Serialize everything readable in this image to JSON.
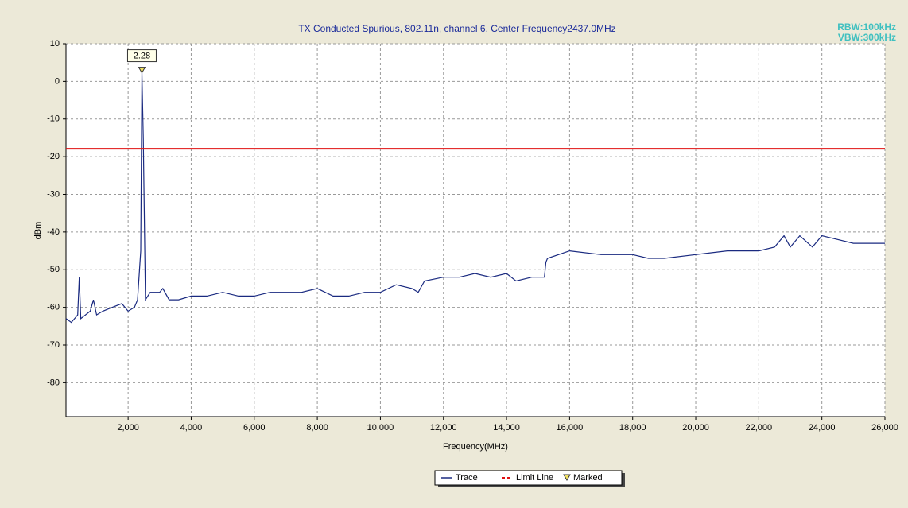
{
  "chart_data": {
    "type": "line",
    "title": "TX Conducted Spurious, 802.11n, channel 6, Center Frequency2437.0MHz",
    "annotations": [
      "RBW:100kHz",
      "VBW:300kHz"
    ],
    "x_label": "Frequency(MHz)",
    "y_label": "dBm",
    "xlim": [
      30,
      26000
    ],
    "ylim": [
      -89,
      10
    ],
    "xticks": [
      {
        "value": 2000,
        "label": "2,000"
      },
      {
        "value": 4000,
        "label": "4,000"
      },
      {
        "value": 6000,
        "label": "6,000"
      },
      {
        "value": 8000,
        "label": "8,000"
      },
      {
        "value": 10000,
        "label": "10,000"
      },
      {
        "value": 12000,
        "label": "12,000"
      },
      {
        "value": 14000,
        "label": "14,000"
      },
      {
        "value": 16000,
        "label": "16,000"
      },
      {
        "value": 18000,
        "label": "18,000"
      },
      {
        "value": 20000,
        "label": "20,000"
      },
      {
        "value": 22000,
        "label": "22,000"
      },
      {
        "value": 24000,
        "label": "24,000"
      },
      {
        "value": 26000,
        "label": "26,000"
      }
    ],
    "yticks": [
      10,
      0,
      -10,
      -20,
      -30,
      -40,
      -50,
      -60,
      -70,
      -80
    ],
    "grid": true,
    "legend": "bottom",
    "series": [
      {
        "name": "Trace",
        "color": "#1a2a80",
        "x": [
          30,
          200,
          400,
          450,
          500,
          800,
          900,
          1000,
          1200,
          1500,
          1800,
          2000,
          2200,
          2300,
          2400,
          2437,
          2480,
          2550,
          2700,
          3000,
          3100,
          3300,
          3600,
          4000,
          4500,
          5000,
          5500,
          6000,
          6500,
          7000,
          7500,
          8000,
          8500,
          9000,
          9500,
          10000,
          10500,
          11000,
          11200,
          11400,
          12000,
          12500,
          13000,
          13500,
          14000,
          14300,
          14800,
          15200,
          15250,
          15300,
          16000,
          17000,
          17500,
          18000,
          18500,
          19000,
          20000,
          21000,
          22000,
          22500,
          22800,
          23000,
          23300,
          23700,
          24000,
          24500,
          25000,
          26000
        ],
        "values": [
          -63,
          -64,
          -62,
          -52,
          -63,
          -61,
          -58,
          -62,
          -61,
          -60,
          -59,
          -61,
          -60,
          -58,
          -45,
          2.28,
          -15,
          -58,
          -56,
          -56,
          -55,
          -58,
          -58,
          -57,
          -57,
          -56,
          -57,
          -57,
          -56,
          -56,
          -56,
          -55,
          -57,
          -57,
          -56,
          -56,
          -54,
          -55,
          -56,
          -53,
          -52,
          -52,
          -51,
          -52,
          -51,
          -53,
          -52,
          -52,
          -48,
          -47,
          -45,
          -46,
          -46,
          -46,
          -47,
          -47,
          -46,
          -45,
          -45,
          -44,
          -41,
          -44,
          -41,
          -44,
          -41,
          -42,
          -43,
          -43
        ]
      },
      {
        "name": "Limit Line",
        "color": "#e01010",
        "values": [
          -17.9
        ]
      },
      {
        "name": "Marked",
        "color": "#f0e060",
        "x": [
          2437
        ],
        "values": [
          2.28
        ]
      }
    ]
  }
}
